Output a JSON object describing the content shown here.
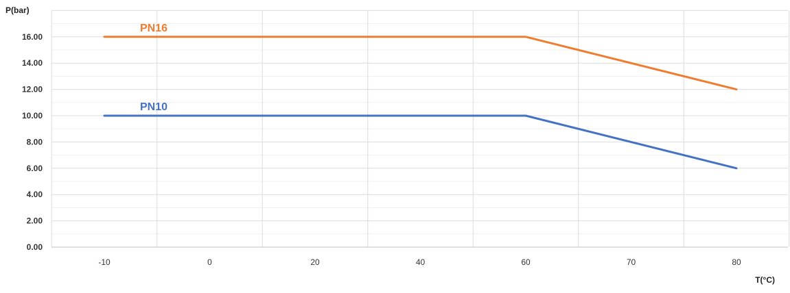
{
  "chart_data": {
    "type": "line",
    "title": "",
    "ylabel": "P(bar)",
    "xlabel": "T(°C)",
    "ylim": [
      0,
      18
    ],
    "y_ticks": [
      "0.00",
      "2.00",
      "4.00",
      "6.00",
      "8.00",
      "10.00",
      "12.00",
      "14.00",
      "16.00"
    ],
    "y_tick_values": [
      0,
      2,
      4,
      6,
      8,
      10,
      12,
      14,
      16
    ],
    "x_ticks": [
      "-10",
      "0",
      "20",
      "40",
      "60",
      "70",
      "80"
    ],
    "grid": true,
    "series": [
      {
        "name": "PN16",
        "color": "#ED7D31",
        "points": [
          {
            "x": "-10",
            "y": 16
          },
          {
            "x": "60",
            "y": 16
          },
          {
            "x": "80",
            "y": 12
          }
        ]
      },
      {
        "name": "PN10",
        "color": "#4472C4",
        "points": [
          {
            "x": "-10",
            "y": 10
          },
          {
            "x": "60",
            "y": 10
          },
          {
            "x": "80",
            "y": 6
          }
        ]
      }
    ]
  }
}
